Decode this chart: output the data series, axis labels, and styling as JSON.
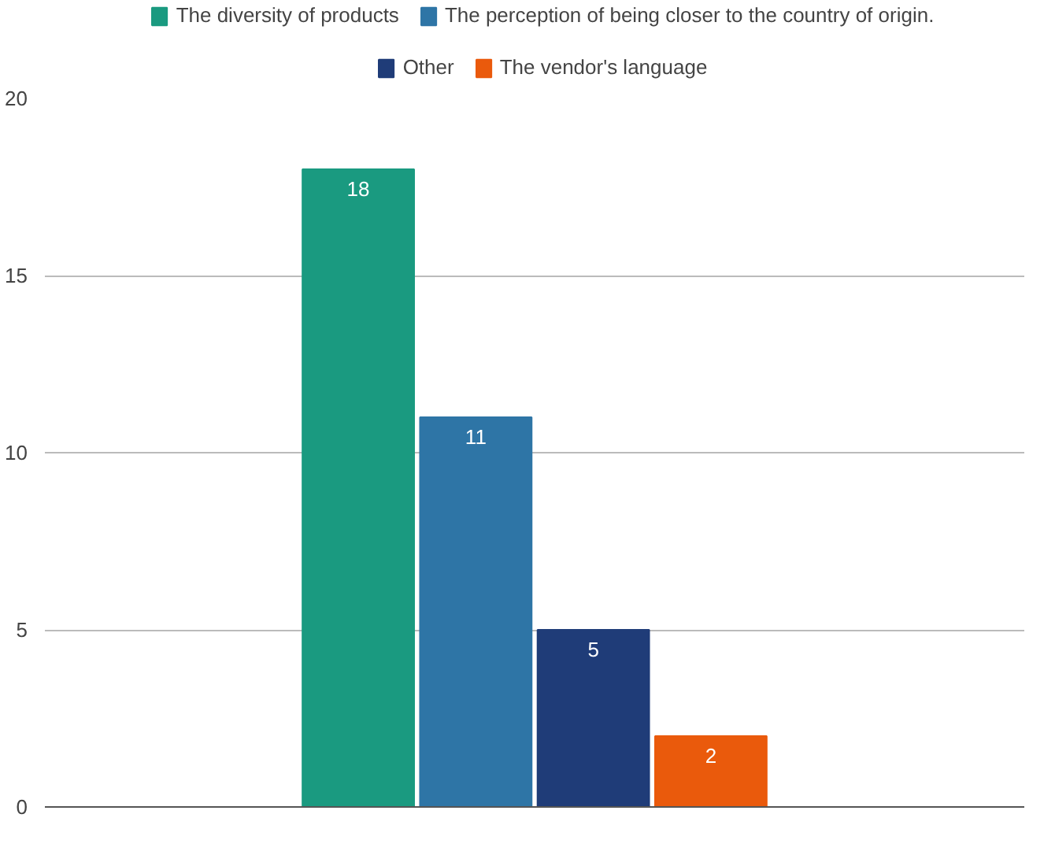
{
  "chart_data": {
    "type": "bar",
    "categories": [
      null
    ],
    "series": [
      {
        "name": "The diversity of products",
        "color": "#1a9a80",
        "values": [
          18
        ]
      },
      {
        "name": "The perception of being closer to the country of origin.",
        "color": "#2e75a6",
        "values": [
          11
        ]
      },
      {
        "name": "Other",
        "color": "#1f3c78",
        "values": [
          5
        ]
      },
      {
        "name": "The vendor's language",
        "color": "#ea5a0c",
        "values": [
          2
        ]
      }
    ],
    "ylim": [
      0,
      20
    ],
    "yticks": [
      0,
      5,
      10,
      15,
      20
    ],
    "grid": "y",
    "legend": "top",
    "data_labels": true
  }
}
